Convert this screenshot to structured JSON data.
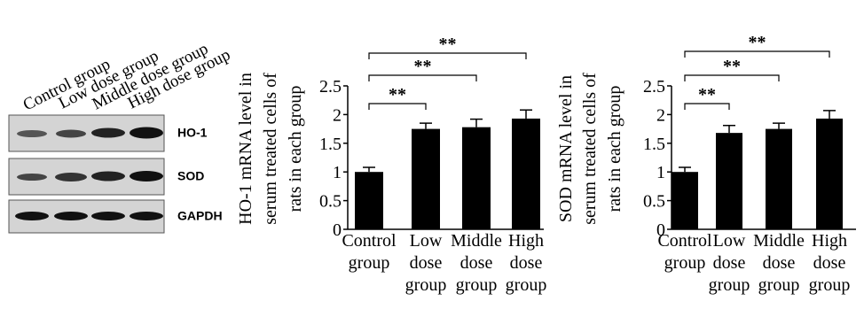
{
  "blot": {
    "lanes": [
      "Control group",
      "Low dose group",
      "Middle dose group",
      "High dose group"
    ],
    "rows": [
      "HO-1",
      "SOD",
      "GAPDH"
    ]
  },
  "chart_data": [
    {
      "type": "bar",
      "y_label": [
        "HO-1 mRNA level in",
        "serum treated cells of",
        "rats in each group"
      ],
      "categories": [
        [
          "Control",
          "group"
        ],
        [
          "Low",
          "dose",
          "group"
        ],
        [
          "Middle",
          "dose",
          "group"
        ],
        [
          "High",
          "dose",
          "group"
        ]
      ],
      "values": [
        1.0,
        1.75,
        1.78,
        1.93
      ],
      "errors": [
        0.08,
        0.1,
        0.14,
        0.15
      ],
      "color": "#000000",
      "ylim": [
        0,
        2.5
      ],
      "yticks": [
        0,
        0.5,
        1,
        1.5,
        2,
        2.5
      ],
      "comparisons": [
        {
          "from": 0,
          "to": 1,
          "label": "**"
        },
        {
          "from": 0,
          "to": 2,
          "label": "**"
        },
        {
          "from": 0,
          "to": 3,
          "label": "**"
        }
      ]
    },
    {
      "type": "bar",
      "y_label": [
        "SOD mRNA level in",
        "serum treated cells of",
        "rats in each group"
      ],
      "categories": [
        [
          "Control",
          "group"
        ],
        [
          "Low",
          "dose",
          "group"
        ],
        [
          "Middle",
          "dose",
          "group"
        ],
        [
          "High",
          "dose",
          "group"
        ]
      ],
      "values": [
        1.0,
        1.68,
        1.75,
        1.93
      ],
      "errors": [
        0.08,
        0.13,
        0.1,
        0.14
      ],
      "color": "#000000",
      "ylim": [
        0,
        2.5
      ],
      "yticks": [
        0,
        0.5,
        1,
        1.5,
        2,
        2.5
      ],
      "comparisons": [
        {
          "from": 0,
          "to": 1,
          "label": "**"
        },
        {
          "from": 0,
          "to": 2,
          "label": "**"
        },
        {
          "from": 0,
          "to": 3,
          "label": "**"
        }
      ]
    }
  ]
}
